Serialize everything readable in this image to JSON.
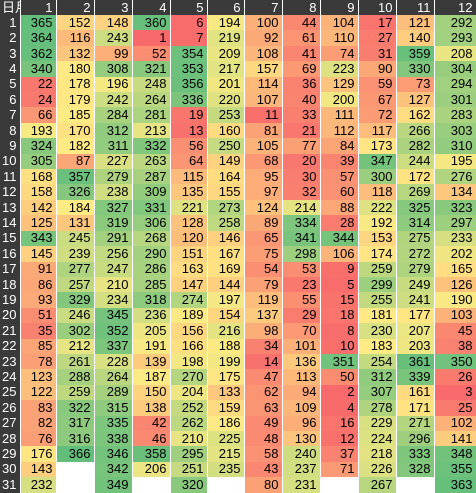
{
  "corner": "日月",
  "months": [
    "1",
    "2",
    "3",
    "4",
    "5",
    "6",
    "7",
    "8",
    "9",
    "10",
    "11",
    "12"
  ],
  "days": [
    "1",
    "2",
    "3",
    "4",
    "5",
    "6",
    "7",
    "8",
    "9",
    "10",
    "11",
    "12",
    "13",
    "14",
    "15",
    "16",
    "17",
    "18",
    "19",
    "20",
    "21",
    "22",
    "23",
    "24",
    "25",
    "26",
    "27",
    "28",
    "29",
    "30",
    "31"
  ],
  "rows": [
    [
      365,
      152,
      148,
      360,
      6,
      194,
      100,
      44,
      104,
      17,
      121,
      292
    ],
    [
      364,
      116,
      243,
      1,
      7,
      219,
      92,
      61,
      110,
      27,
      140,
      293
    ],
    [
      362,
      132,
      99,
      52,
      354,
      209,
      108,
      41,
      74,
      31,
      359,
      208
    ],
    [
      340,
      180,
      308,
      321,
      353,
      217,
      157,
      69,
      223,
      90,
      330,
      304
    ],
    [
      22,
      178,
      196,
      248,
      356,
      201,
      114,
      36,
      129,
      59,
      73,
      294
    ],
    [
      24,
      179,
      242,
      264,
      336,
      220,
      107,
      40,
      200,
      67,
      127,
      301
    ],
    [
      66,
      185,
      284,
      281,
      19,
      253,
      11,
      33,
      111,
      72,
      162,
      283
    ],
    [
      193,
      170,
      312,
      213,
      13,
      160,
      81,
      21,
      112,
      117,
      266,
      303
    ],
    [
      324,
      182,
      311,
      332,
      56,
      250,
      105,
      77,
      84,
      173,
      282,
      310
    ],
    [
      305,
      87,
      227,
      263,
      64,
      149,
      68,
      20,
      39,
      347,
      244,
      195
    ],
    [
      168,
      357,
      279,
      287,
      115,
      164,
      95,
      30,
      57,
      300,
      172,
      276
    ],
    [
      158,
      326,
      238,
      309,
      135,
      155,
      97,
      32,
      60,
      118,
      269,
      134
    ],
    [
      142,
      184,
      327,
      331,
      221,
      273,
      124,
      214,
      88,
      222,
      325,
      323
    ],
    [
      125,
      131,
      319,
      306,
      128,
      258,
      89,
      334,
      28,
      192,
      314,
      297
    ],
    [
      343,
      245,
      291,
      268,
      120,
      146,
      65,
      341,
      344,
      153,
      275,
      233
    ],
    [
      145,
      239,
      256,
      290,
      151,
      167,
      75,
      298,
      106,
      174,
      272,
      202
    ],
    [
      91,
      277,
      247,
      286,
      163,
      169,
      54,
      53,
      9,
      259,
      279,
      165
    ],
    [
      86,
      257,
      210,
      285,
      147,
      144,
      79,
      23,
      5,
      299,
      249,
      126
    ],
    [
      93,
      329,
      234,
      318,
      274,
      197,
      119,
      55,
      15,
      255,
      241,
      190
    ],
    [
      51,
      246,
      345,
      236,
      189,
      154,
      137,
      29,
      18,
      181,
      177,
      103
    ],
    [
      35,
      302,
      352,
      205,
      156,
      216,
      98,
      70,
      8,
      230,
      207,
      45
    ],
    [
      85,
      212,
      337,
      191,
      166,
      188,
      34,
      101,
      10,
      183,
      203,
      38
    ],
    [
      78,
      261,
      228,
      139,
      198,
      199,
      14,
      136,
      351,
      254,
      361,
      350
    ],
    [
      123,
      288,
      264,
      187,
      270,
      175,
      47,
      113,
      50,
      312,
      339,
      26
    ],
    [
      122,
      259,
      289,
      150,
      204,
      133,
      62,
      94,
      2,
      307,
      161,
      3
    ],
    [
      83,
      322,
      315,
      138,
      252,
      159,
      63,
      109,
      4,
      278,
      171,
      25
    ],
    [
      82,
      317,
      335,
      42,
      262,
      186,
      49,
      96,
      16,
      229,
      271,
      102
    ],
    [
      76,
      316,
      338,
      46,
      210,
      225,
      48,
      130,
      12,
      224,
      296,
      141
    ],
    [
      176,
      366,
      346,
      358,
      295,
      215,
      58,
      240,
      37,
      218,
      333,
      348
    ],
    [
      143,
      null,
      342,
      206,
      251,
      235,
      43,
      237,
      71,
      226,
      328,
      355
    ],
    [
      232,
      null,
      349,
      null,
      320,
      null,
      80,
      231,
      null,
      267,
      null,
      363
    ]
  ]
}
